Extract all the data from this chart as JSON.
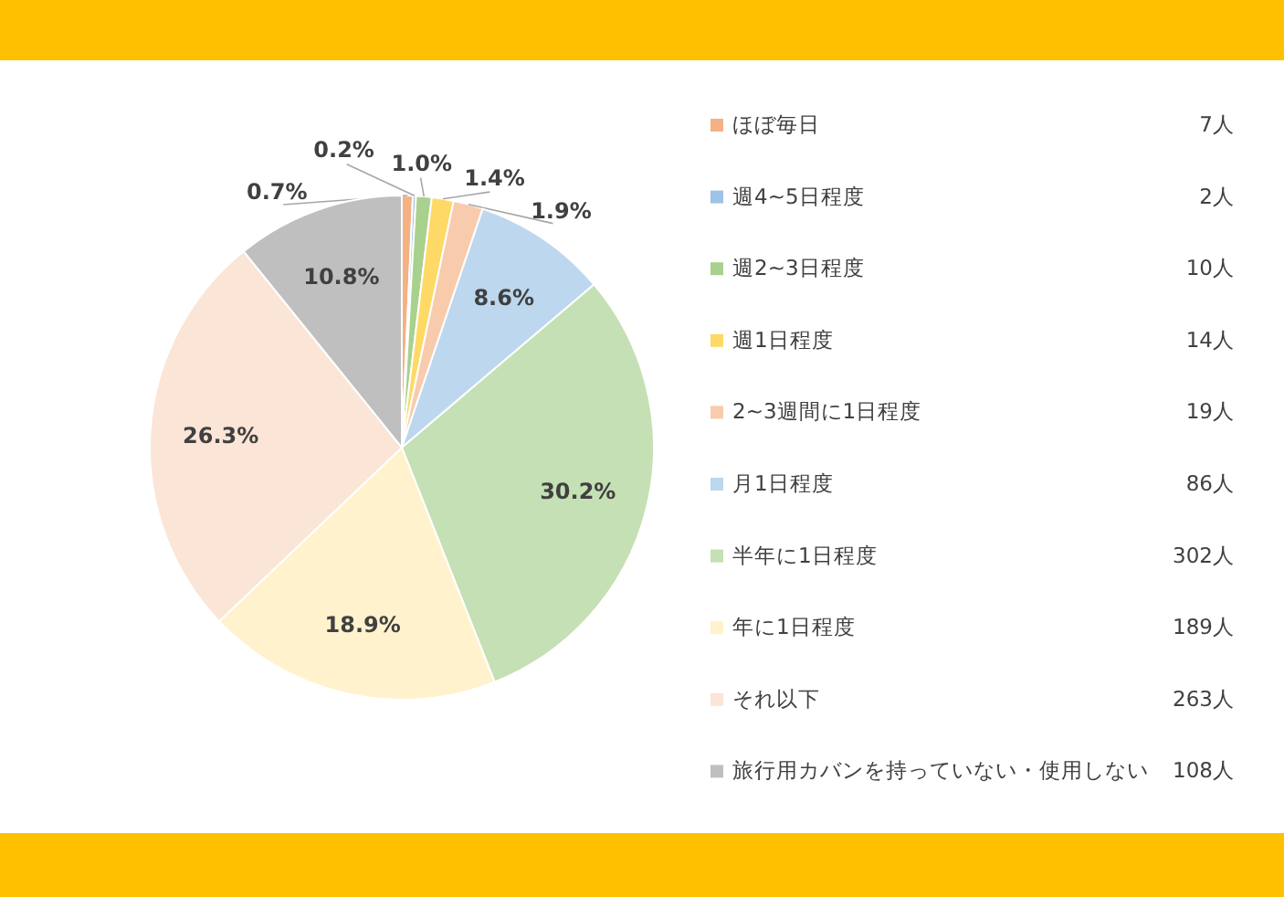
{
  "chart_data": {
    "type": "pie",
    "categories": [
      "ほぼ毎日",
      "週4~5日程度",
      "週2~3日程度",
      "週1日程度",
      "2~3週間に1日程度",
      "月1日程度",
      "半年に1日程度",
      "年に1日程度",
      "それ以下",
      "旅行用カバンを持っていない・使用しない"
    ],
    "values": [
      0.7,
      0.2,
      1.0,
      1.4,
      1.9,
      8.6,
      30.2,
      18.9,
      26.3,
      10.8
    ],
    "value_labels": [
      "0.7%",
      "0.2%",
      "1.0%",
      "1.4%",
      "1.9%",
      "8.6%",
      "30.2%",
      "18.9%",
      "26.3%",
      "10.8%"
    ],
    "colors": [
      "#f4b183",
      "#9dc3e6",
      "#a9d18e",
      "#ffd966",
      "#f8cbad",
      "#bdd7ee",
      "#c5e0b4",
      "#fff2cc",
      "#fbe5d6",
      "#bfbfbf"
    ],
    "legend": "right",
    "annotations": [
      {
        "text": "7人",
        "x": "ほぼ毎日"
      },
      {
        "text": "2人",
        "x": "週4~5日程度"
      },
      {
        "text": "10人",
        "x": "週2~3日程度"
      },
      {
        "text": "14人",
        "x": "週1日程度"
      },
      {
        "text": "19人",
        "x": "2~3週間に1日程度"
      },
      {
        "text": "86人",
        "x": "月1日程度"
      },
      {
        "text": "302人",
        "x": "半年に1日程度"
      },
      {
        "text": "189人",
        "x": "年に1日程度"
      },
      {
        "text": "263人",
        "x": "それ以下"
      },
      {
        "text": "108人",
        "x": "旅行用カバンを持っていない・使用しない"
      }
    ]
  }
}
